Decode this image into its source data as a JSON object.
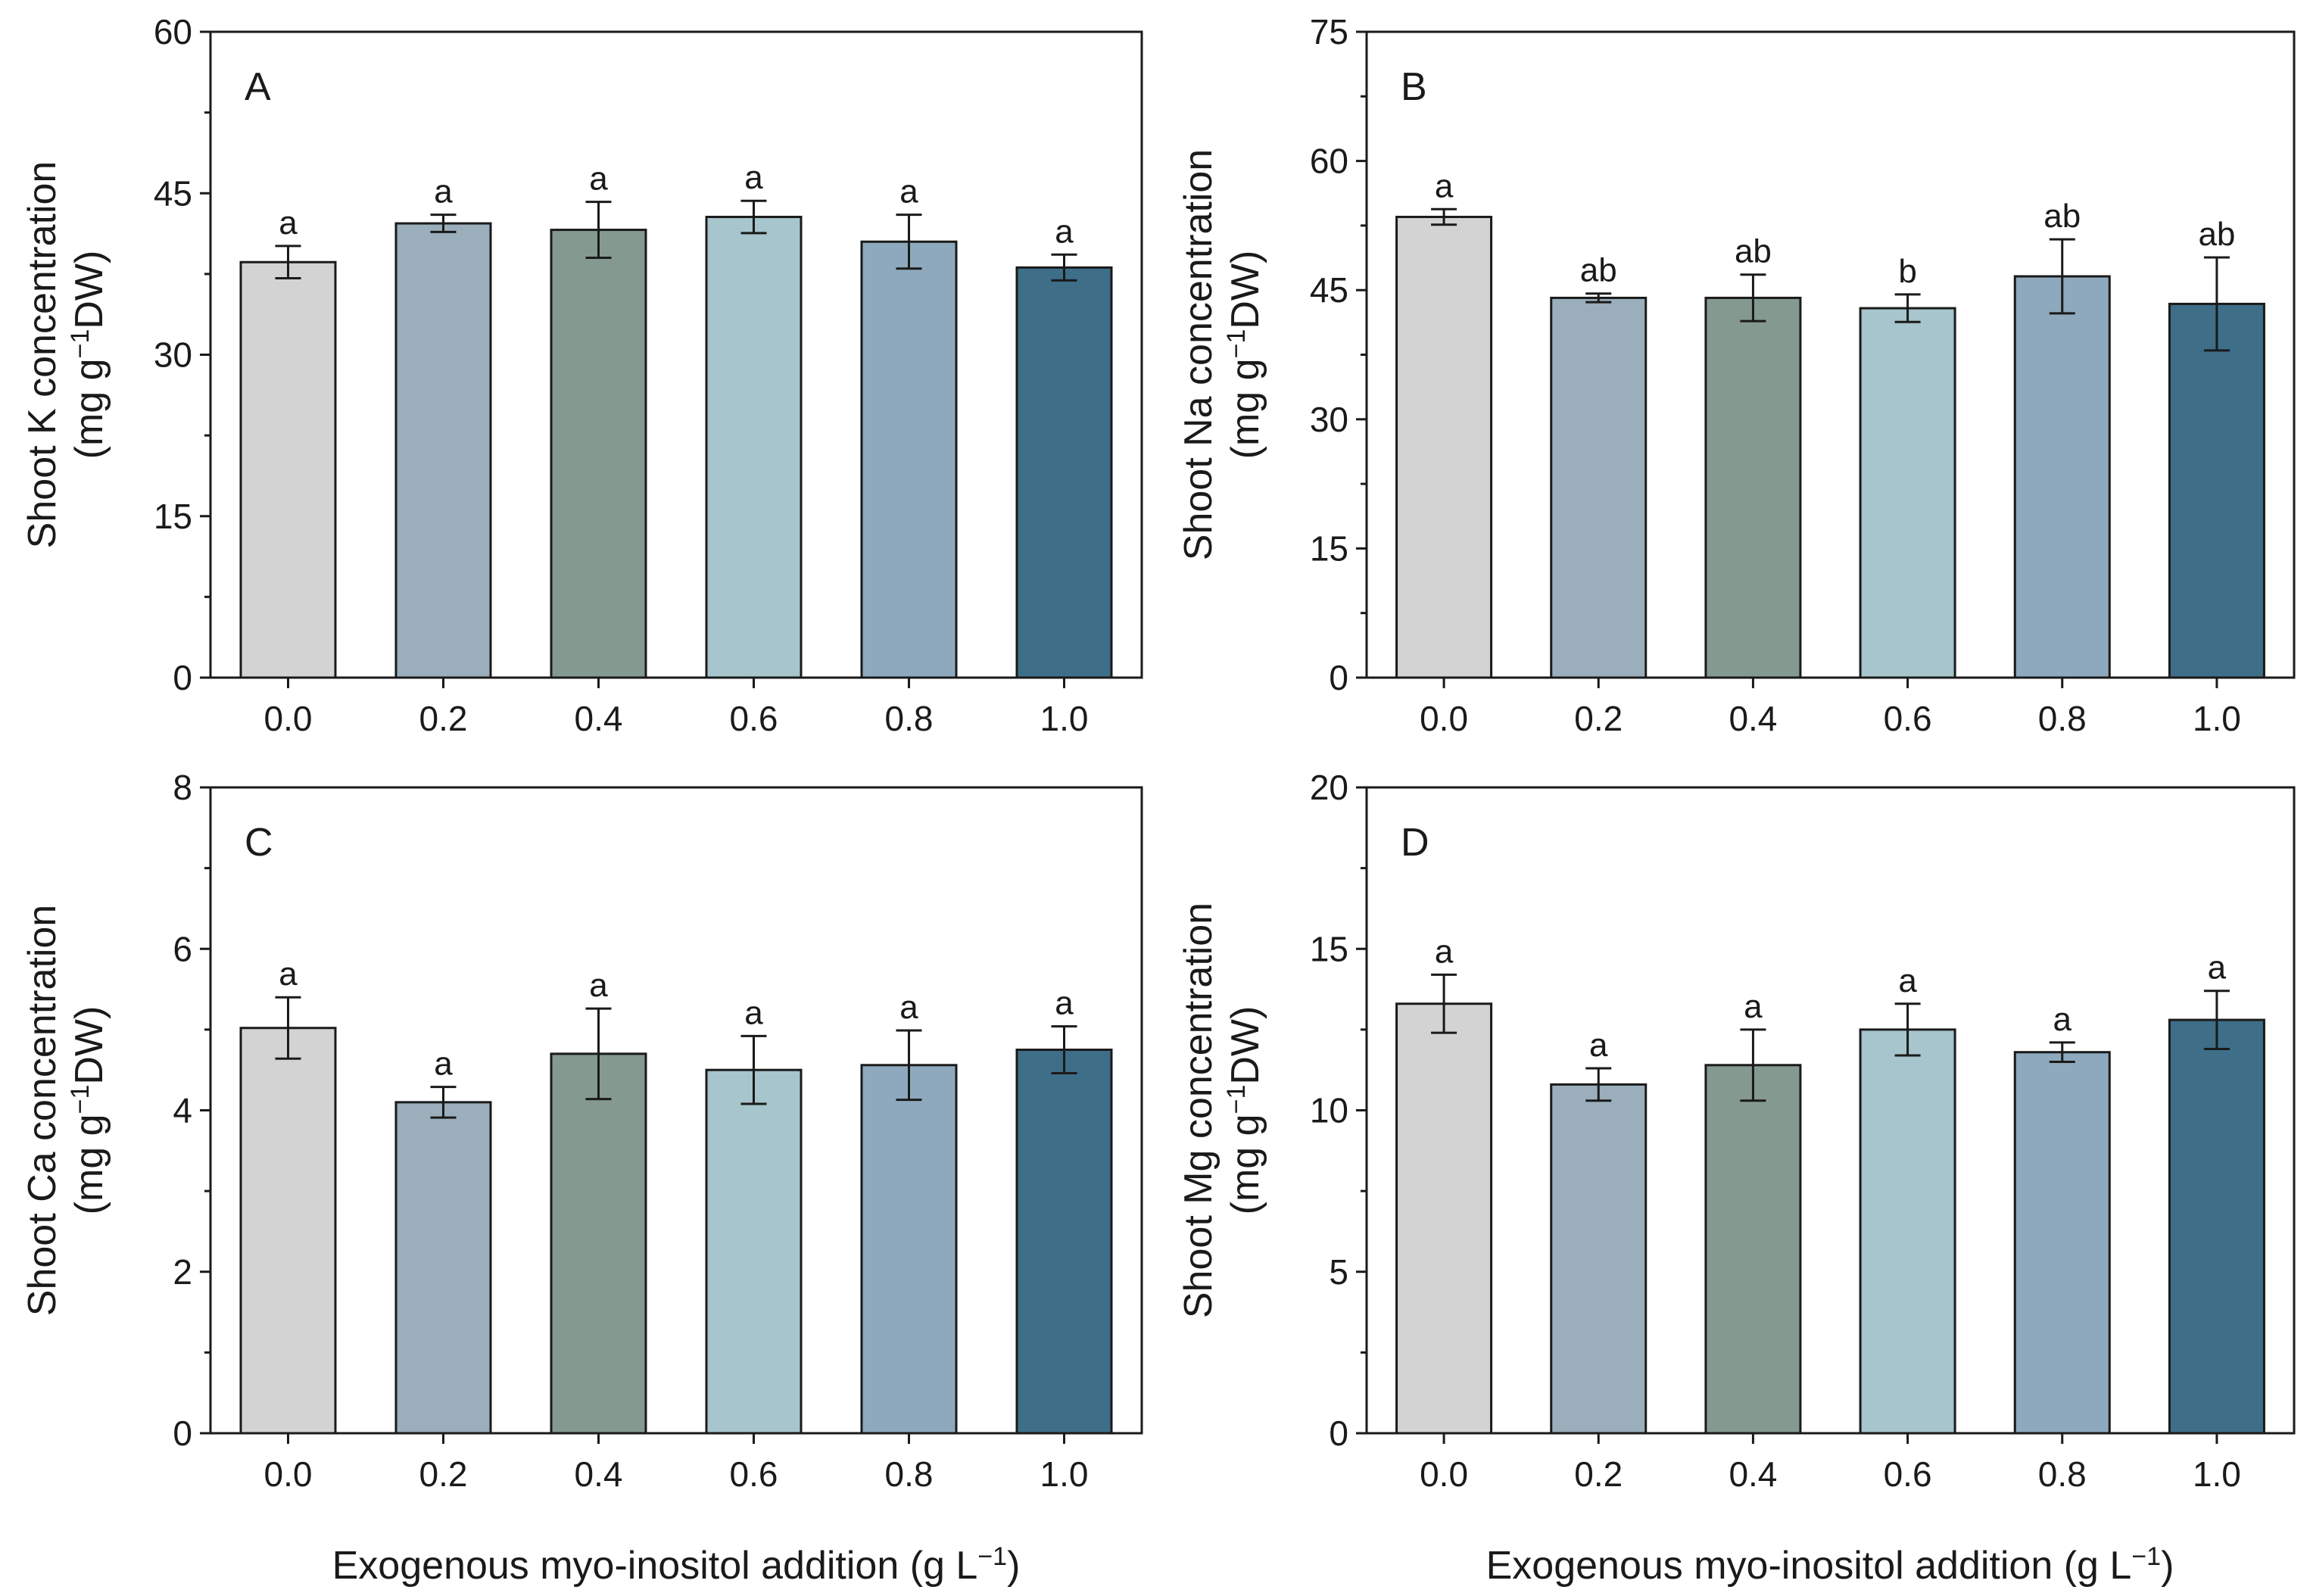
{
  "figure": {
    "xlabel_main": "Exogenous myo-inositol addition (g L",
    "xlabel_sup": "−1",
    "xlabel_end": ")"
  },
  "chart_data": [
    {
      "type": "bar",
      "panel": "A",
      "categories": [
        "0.0",
        "0.2",
        "0.4",
        "0.6",
        "0.8",
        "1.0"
      ],
      "values": [
        38.6,
        42.2,
        41.6,
        42.8,
        40.5,
        38.1
      ],
      "errors": [
        1.5,
        0.8,
        2.6,
        1.5,
        2.5,
        1.2
      ],
      "significance": [
        "a",
        "a",
        "a",
        "a",
        "a",
        "a"
      ],
      "ylim": [
        0,
        60
      ],
      "yticks": [
        "0",
        "15",
        "30",
        "45",
        "60"
      ],
      "ylabel_line1": "Shoot K concentration",
      "ylabel_line2_pre": "(mg g",
      "ylabel_line2_sup": "−1",
      "ylabel_line2_post": "DW)"
    },
    {
      "type": "bar",
      "panel": "B",
      "categories": [
        "0.0",
        "0.2",
        "0.4",
        "0.6",
        "0.8",
        "1.0"
      ],
      "values": [
        53.5,
        44.1,
        44.1,
        42.9,
        46.6,
        43.4
      ],
      "errors": [
        0.9,
        0.5,
        2.7,
        1.6,
        4.3,
        5.4
      ],
      "significance": [
        "a",
        "ab",
        "ab",
        "b",
        "ab",
        "ab"
      ],
      "ylim": [
        0,
        75
      ],
      "yticks": [
        "0",
        "15",
        "30",
        "45",
        "60",
        "75"
      ],
      "ylabel_line1": "Shoot Na concentration",
      "ylabel_line2_pre": "(mg g",
      "ylabel_line2_sup": "−1",
      "ylabel_line2_post": "DW)"
    },
    {
      "type": "bar",
      "panel": "C",
      "categories": [
        "0.0",
        "0.2",
        "0.4",
        "0.6",
        "0.8",
        "1.0"
      ],
      "values": [
        5.02,
        4.1,
        4.7,
        4.5,
        4.56,
        4.75
      ],
      "errors": [
        0.38,
        0.19,
        0.56,
        0.42,
        0.43,
        0.29
      ],
      "significance": [
        "a",
        "a",
        "a",
        "a",
        "a",
        "a"
      ],
      "ylim": [
        0,
        8
      ],
      "yticks": [
        "0",
        "2",
        "4",
        "6",
        "8"
      ],
      "ylabel_line1": "Shoot Ca concentration",
      "ylabel_line2_pre": "(mg g",
      "ylabel_line2_sup": "−1",
      "ylabel_line2_post": "DW)"
    },
    {
      "type": "bar",
      "panel": "D",
      "categories": [
        "0.0",
        "0.2",
        "0.4",
        "0.6",
        "0.8",
        "1.0"
      ],
      "values": [
        13.3,
        10.8,
        11.4,
        12.5,
        11.8,
        12.8
      ],
      "errors": [
        0.9,
        0.5,
        1.1,
        0.8,
        0.3,
        0.9
      ],
      "significance": [
        "a",
        "a",
        "a",
        "a",
        "a",
        "a"
      ],
      "ylim": [
        0,
        20
      ],
      "yticks": [
        "0",
        "5",
        "10",
        "15",
        "20"
      ],
      "ylabel_line1": "Shoot Mg concentration",
      "ylabel_line2_pre": "(mg g",
      "ylabel_line2_sup": "−1",
      "ylabel_line2_post": "DW)"
    }
  ],
  "colors": {
    "bars": [
      "#d3d3d3",
      "#9aaebb",
      "#84998f",
      "#a6c5cc",
      "#8ea9bd",
      "#3e6e88"
    ],
    "stroke": "#1a1a1a"
  }
}
